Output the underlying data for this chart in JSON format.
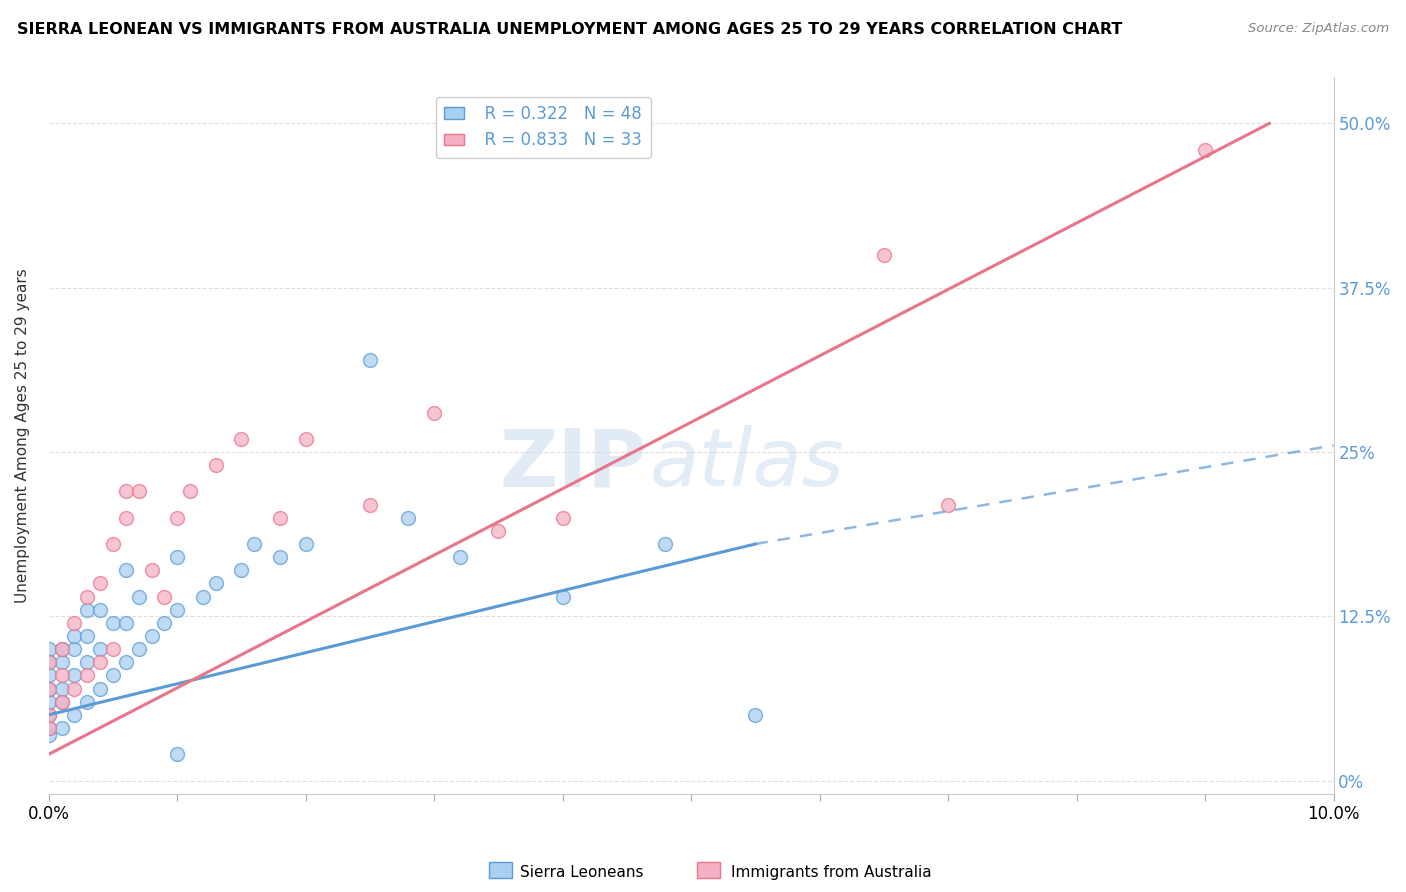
{
  "title": "SIERRA LEONEAN VS IMMIGRANTS FROM AUSTRALIA UNEMPLOYMENT AMONG AGES 25 TO 29 YEARS CORRELATION CHART",
  "source_text": "Source: ZipAtlas.com",
  "xlabel": "",
  "ylabel": "Unemployment Among Ages 25 to 29 years",
  "xlim": [
    0.0,
    0.1
  ],
  "ylim": [
    -0.01,
    0.535
  ],
  "yticks": [
    0.0,
    0.125,
    0.25,
    0.375,
    0.5
  ],
  "ytick_labels": [
    "0%",
    "12.5%",
    "25%",
    "37.5%",
    "50.0%"
  ],
  "xticks": [
    0.0,
    0.01,
    0.02,
    0.03,
    0.04,
    0.05,
    0.06,
    0.07,
    0.08,
    0.09,
    0.1
  ],
  "xtick_labels": [
    "0.0%",
    "",
    "",
    "",
    "",
    "",
    "",
    "",
    "",
    "",
    "10.0%"
  ],
  "legend_R_blue": "R = 0.322",
  "legend_N_blue": "N = 48",
  "legend_R_pink": "R = 0.833",
  "legend_N_pink": "N = 33",
  "blue_color": "#A8D0F0",
  "pink_color": "#F5B0C5",
  "blue_line_color": "#5B9BD5",
  "pink_line_color": "#E8758A",
  "blue_scatter": {
    "x": [
      0.0,
      0.0,
      0.0,
      0.0,
      0.0,
      0.0,
      0.0,
      0.0,
      0.001,
      0.001,
      0.001,
      0.001,
      0.001,
      0.002,
      0.002,
      0.002,
      0.002,
      0.003,
      0.003,
      0.003,
      0.003,
      0.004,
      0.004,
      0.004,
      0.005,
      0.005,
      0.006,
      0.006,
      0.006,
      0.007,
      0.007,
      0.008,
      0.009,
      0.01,
      0.01,
      0.012,
      0.013,
      0.015,
      0.016,
      0.018,
      0.02,
      0.025,
      0.028,
      0.032,
      0.04,
      0.048,
      0.055,
      0.01
    ],
    "y": [
      0.035,
      0.04,
      0.05,
      0.06,
      0.07,
      0.08,
      0.09,
      0.1,
      0.04,
      0.06,
      0.07,
      0.09,
      0.1,
      0.05,
      0.08,
      0.1,
      0.11,
      0.06,
      0.09,
      0.11,
      0.13,
      0.07,
      0.1,
      0.13,
      0.08,
      0.12,
      0.09,
      0.12,
      0.16,
      0.1,
      0.14,
      0.11,
      0.12,
      0.13,
      0.17,
      0.14,
      0.15,
      0.16,
      0.18,
      0.17,
      0.18,
      0.32,
      0.2,
      0.17,
      0.14,
      0.18,
      0.05,
      0.02
    ]
  },
  "pink_scatter": {
    "x": [
      0.0,
      0.0,
      0.0,
      0.0,
      0.001,
      0.001,
      0.001,
      0.002,
      0.002,
      0.003,
      0.003,
      0.004,
      0.004,
      0.005,
      0.005,
      0.006,
      0.006,
      0.007,
      0.008,
      0.009,
      0.01,
      0.011,
      0.013,
      0.015,
      0.018,
      0.02,
      0.025,
      0.03,
      0.035,
      0.04,
      0.065,
      0.07,
      0.09
    ],
    "y": [
      0.04,
      0.05,
      0.07,
      0.09,
      0.06,
      0.08,
      0.1,
      0.07,
      0.12,
      0.08,
      0.14,
      0.09,
      0.15,
      0.1,
      0.18,
      0.2,
      0.22,
      0.22,
      0.16,
      0.14,
      0.2,
      0.22,
      0.24,
      0.26,
      0.2,
      0.26,
      0.21,
      0.28,
      0.19,
      0.2,
      0.4,
      0.21,
      0.48
    ]
  },
  "blue_trend_solid": {
    "x": [
      0.0,
      0.055
    ],
    "y": [
      0.05,
      0.18
    ]
  },
  "blue_trend_dashed": {
    "x": [
      0.055,
      0.1
    ],
    "y": [
      0.18,
      0.255
    ]
  },
  "pink_trend": {
    "x": [
      0.0,
      0.095
    ],
    "y": [
      0.02,
      0.5
    ]
  },
  "watermark_zip": "ZIP",
  "watermark_atlas": "atlas",
  "background_color": "#ffffff",
  "grid_color": "#e0e0e0"
}
